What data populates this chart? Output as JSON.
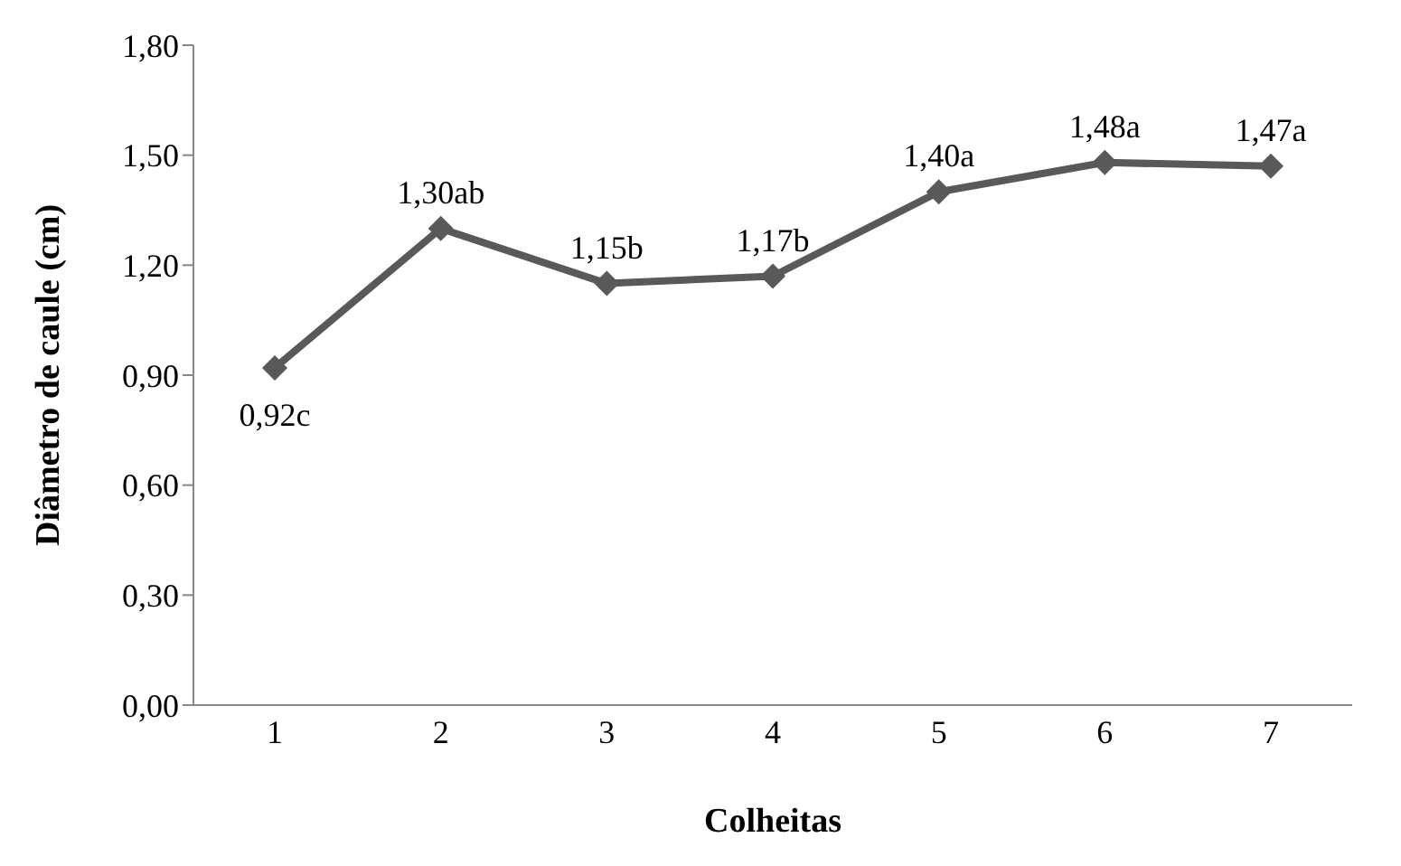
{
  "chart_data": {
    "type": "line",
    "xlabel": "Colheitas",
    "ylabel": "Diâmetro de caule (cm)",
    "categories": [
      "1",
      "2",
      "3",
      "4",
      "5",
      "6",
      "7"
    ],
    "series": [
      {
        "color": "#595959",
        "values": [
          0.92,
          1.3,
          1.15,
          1.17,
          1.4,
          1.48,
          1.47
        ],
        "value_labels": [
          "0,92c",
          "1,30ab",
          "1,15b",
          "1,17b",
          "1,40a",
          "1,48a",
          "1,47a"
        ]
      }
    ],
    "ylim": [
      0,
      1.8
    ],
    "yticks": [
      {
        "value": 0,
        "label": "0,00"
      },
      {
        "value": 0.3,
        "label": "0,30"
      },
      {
        "value": 0.6,
        "label": "0,60"
      },
      {
        "value": 0.9,
        "label": "0,90"
      },
      {
        "value": 1.2,
        "label": "1,20"
      },
      {
        "value": 1.5,
        "label": "1,50"
      },
      {
        "value": 1.8,
        "label": "1,80"
      }
    ],
    "grid": false,
    "legend": false,
    "marker": "diamond",
    "line_style": "solid"
  }
}
